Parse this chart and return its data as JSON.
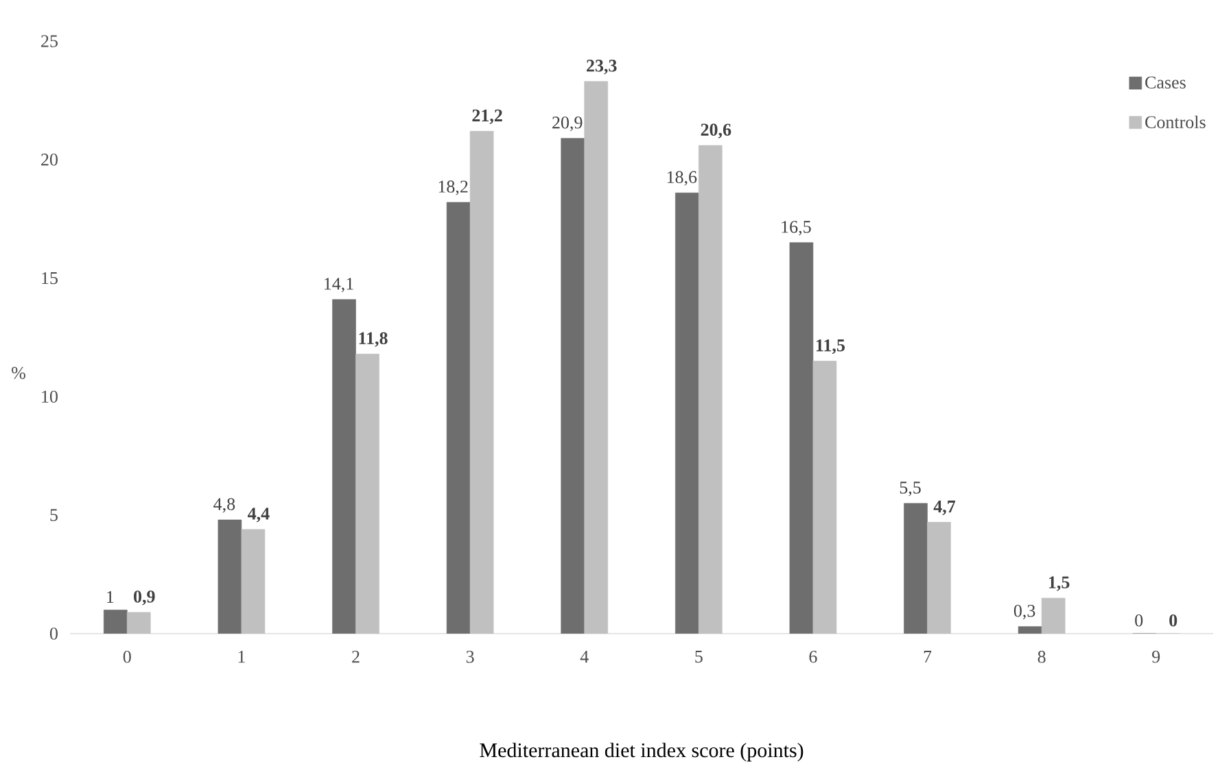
{
  "chart_data": {
    "type": "bar",
    "categories": [
      "0",
      "1",
      "2",
      "3",
      "4",
      "5",
      "6",
      "7",
      "8",
      "9"
    ],
    "series": [
      {
        "name": "Cases",
        "color": "#6e6e6e",
        "values": [
          1,
          4.8,
          14.1,
          18.2,
          20.9,
          18.6,
          16.5,
          5.5,
          0.3,
          0
        ],
        "value_labels": [
          "1",
          "4,8",
          "14,1",
          "18,2",
          "20,9",
          "18,6",
          "16,5",
          "5,5",
          "0,3",
          "0"
        ]
      },
      {
        "name": "Controls",
        "color": "#c0c0c0",
        "values": [
          0.9,
          4.4,
          11.8,
          21.2,
          23.3,
          20.6,
          11.5,
          4.7,
          1.5,
          0
        ],
        "value_labels": [
          "**0,9**",
          "**4,4**",
          "**11,8**",
          "**21,2**",
          "**23,3**",
          "**20,6**",
          "**11,5**",
          "**4,7**",
          "**1,5**",
          "**0**"
        ]
      }
    ],
    "xlabel": "Mediterranean diet index score (points)",
    "ylabel": "%",
    "ylim": [
      0,
      25
    ],
    "yticks": [
      0,
      5,
      10,
      15,
      20,
      25
    ],
    "grid": false,
    "legend": "top right"
  }
}
